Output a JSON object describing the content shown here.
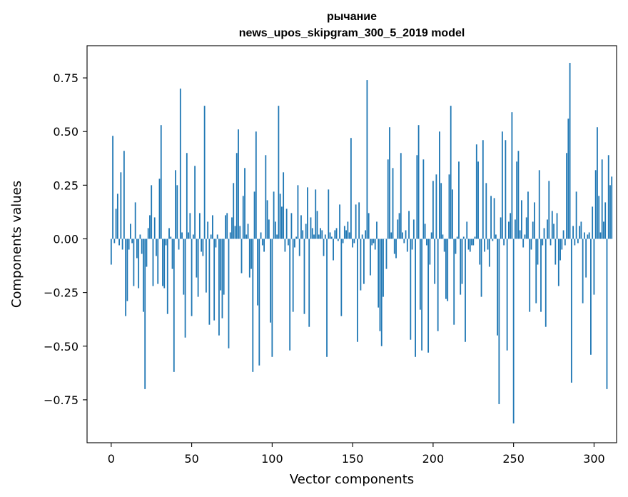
{
  "chart_data": {
    "type": "bar",
    "title": "рычание",
    "subtitle": "news_upos_skipgram_300_5_2019 model",
    "xlabel": "Vector components",
    "ylabel": "Components values",
    "xlim": [
      -15,
      314
    ],
    "ylim": [
      -0.95,
      0.9
    ],
    "xticks": [
      0,
      50,
      100,
      150,
      200,
      250,
      300
    ],
    "yticks": [
      -0.75,
      -0.5,
      -0.25,
      0.0,
      0.25,
      0.5,
      0.75
    ],
    "ytick_labels": [
      "−0.75",
      "−0.50",
      "−0.25",
      "0.00",
      "0.25",
      "0.50",
      "0.75"
    ],
    "bar_color": "#1f77b4",
    "grid": false,
    "values": [
      -0.12,
      0.48,
      -0.02,
      0.14,
      0.21,
      -0.03,
      0.31,
      -0.05,
      0.41,
      -0.36,
      -0.29,
      -0.05,
      0.07,
      -0.02,
      -0.22,
      0.17,
      -0.09,
      -0.23,
      0.02,
      -0.07,
      -0.34,
      -0.7,
      -0.13,
      0.05,
      0.11,
      0.25,
      -0.22,
      0.1,
      -0.08,
      -0.21,
      0.28,
      0.53,
      -0.22,
      -0.23,
      -0.03,
      -0.35,
      0.05,
      0.01,
      -0.14,
      -0.62,
      0.32,
      0.25,
      -0.05,
      0.7,
      0.03,
      -0.26,
      -0.46,
      0.4,
      0.03,
      0.12,
      -0.36,
      0.02,
      0.34,
      -0.18,
      -0.27,
      0.12,
      -0.06,
      -0.08,
      0.62,
      -0.25,
      0.08,
      -0.4,
      0.02,
      0.11,
      -0.38,
      -0.04,
      0.02,
      -0.45,
      -0.24,
      -0.37,
      -0.26,
      0.11,
      0.12,
      -0.51,
      0.03,
      0.1,
      0.26,
      0.06,
      0.4,
      0.51,
      0.06,
      -0.16,
      0.2,
      0.33,
      0.02,
      0.07,
      -0.18,
      -0.14,
      -0.62,
      0.22,
      0.5,
      -0.31,
      -0.59,
      0.03,
      -0.03,
      -0.06,
      0.39,
      0.18,
      0.09,
      -0.39,
      -0.55,
      0.22,
      0.08,
      0.02,
      0.62,
      0.21,
      0.15,
      0.31,
      -0.06,
      0.14,
      -0.03,
      -0.52,
      0.12,
      -0.34,
      -0.04,
      0.01,
      0.25,
      -0.08,
      0.11,
      0.04,
      -0.35,
      0.07,
      0.24,
      -0.41,
      0.1,
      0.05,
      0.02,
      0.23,
      0.13,
      0.02,
      0.05,
      0.04,
      -0.08,
      0.02,
      -0.55,
      0.23,
      0.03,
      0.01,
      -0.1,
      0.04,
      0.05,
      -0.01,
      0.16,
      -0.36,
      -0.02,
      0.06,
      0.04,
      0.08,
      0.03,
      0.47,
      -0.04,
      -0.02,
      0.16,
      -0.48,
      0.17,
      -0.24,
      0.02,
      -0.21,
      0.04,
      0.74,
      0.12,
      -0.17,
      -0.03,
      -0.02,
      -0.05,
      0.08,
      -0.32,
      -0.43,
      -0.5,
      -0.27,
      0.0,
      -0.14,
      0.37,
      0.52,
      0.03,
      0.33,
      -0.07,
      -0.09,
      0.09,
      0.12,
      0.4,
      0.03,
      -0.02,
      0.04,
      -0.06,
      0.13,
      -0.47,
      -0.05,
      0.09,
      -0.55,
      0.39,
      0.53,
      -0.33,
      -0.52,
      0.37,
      0.07,
      -0.03,
      -0.53,
      -0.12,
      0.03,
      0.27,
      -0.21,
      0.3,
      -0.43,
      0.5,
      0.26,
      0.02,
      -0.06,
      -0.28,
      -0.29,
      0.3,
      0.62,
      0.23,
      -0.4,
      -0.07,
      0.01,
      0.36,
      -0.26,
      -0.21,
      0.01,
      -0.48,
      0.08,
      -0.05,
      -0.06,
      -0.03,
      -0.03,
      0.01,
      0.44,
      0.36,
      -0.12,
      -0.27,
      0.46,
      -0.06,
      0.26,
      -0.05,
      -0.13,
      0.2,
      -0.01,
      0.19,
      0.02,
      -0.45,
      -0.77,
      0.1,
      0.5,
      -0.03,
      0.46,
      -0.52,
      0.08,
      0.12,
      0.59,
      -0.86,
      0.09,
      0.36,
      0.41,
      0.04,
      0.18,
      -0.04,
      0.02,
      0.1,
      0.22,
      -0.34,
      -0.05,
      0.08,
      0.17,
      -0.3,
      -0.12,
      0.32,
      -0.34,
      -0.03,
      0.05,
      -0.41,
      0.09,
      0.27,
      -0.03,
      0.13,
      0.07,
      -0.12,
      0.12,
      -0.22,
      -0.1,
      -0.05,
      0.04,
      -0.03,
      0.4,
      0.56,
      0.82,
      -0.67,
      0.06,
      -0.03,
      0.22,
      -0.02,
      0.06,
      0.08,
      -0.3,
      0.03,
      -0.18,
      0.02,
      0.03,
      -0.54,
      0.15,
      -0.26,
      0.32,
      0.52,
      0.2,
      0.03,
      0.37,
      0.08,
      0.17,
      -0.7,
      0.39,
      0.25,
      0.29
    ]
  }
}
